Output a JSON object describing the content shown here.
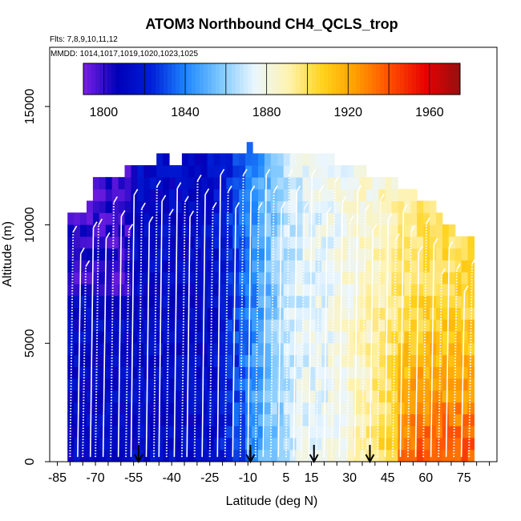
{
  "chart_data": {
    "type": "heatmap",
    "title": "ATOM3 Northbound CH4_QCLS_trop",
    "subtitle_flights": "Flts: 7,8,9,10,11,12",
    "subtitle_dates": "MMDD: 1014,1017,1019,1020,1023,1025",
    "xlabel": "Latitude (deg N)",
    "ylabel": "Altitude (m)",
    "xlim": [
      -88,
      88
    ],
    "ylim": [
      0,
      17500
    ],
    "x_ticks": [
      -85,
      -70,
      -55,
      -40,
      -25,
      -10,
      5,
      15,
      30,
      45,
      60,
      75
    ],
    "y_ticks": [
      0,
      5000,
      10000,
      15000
    ],
    "colorbar": {
      "ticks": [
        1800,
        1840,
        1880,
        1920,
        1960
      ],
      "range": [
        1790,
        1975
      ],
      "colors": [
        "#7b1fe6",
        "#0000b8",
        "#0020d8",
        "#1e88ff",
        "#7ec8ff",
        "#eaf6ff",
        "#fff3b0",
        "#ffd21a",
        "#ff9a00",
        "#ff4a00",
        "#e80000",
        "#951010"
      ]
    },
    "arrows_latitude": [
      -53,
      -9,
      16,
      38
    ],
    "profile_latitudes": [
      -80,
      -77,
      -75,
      -72,
      -70,
      -67,
      -64,
      -61,
      -58,
      -56,
      -53,
      -50,
      -47,
      -45,
      -42,
      -39,
      -36,
      -34,
      -31,
      -28,
      -25,
      -22,
      -19,
      -16,
      -13,
      -10,
      -7,
      -4,
      -1,
      2,
      5,
      8,
      11,
      14,
      17,
      20,
      23,
      26,
      29,
      32,
      35,
      38,
      41,
      44,
      47,
      50,
      53,
      56,
      59,
      62,
      65,
      68,
      71,
      74,
      77
    ],
    "field_lat_range": [
      -81,
      80
    ],
    "field_alt_range": [
      0,
      13500
    ],
    "ch4_description": "Low (~1800-1830 ppb) in southern hemisphere rising to ~1880 near equator and ~1930-1960 ppb at northern mid/high latitudes, maximum near surface at 55-75N"
  }
}
